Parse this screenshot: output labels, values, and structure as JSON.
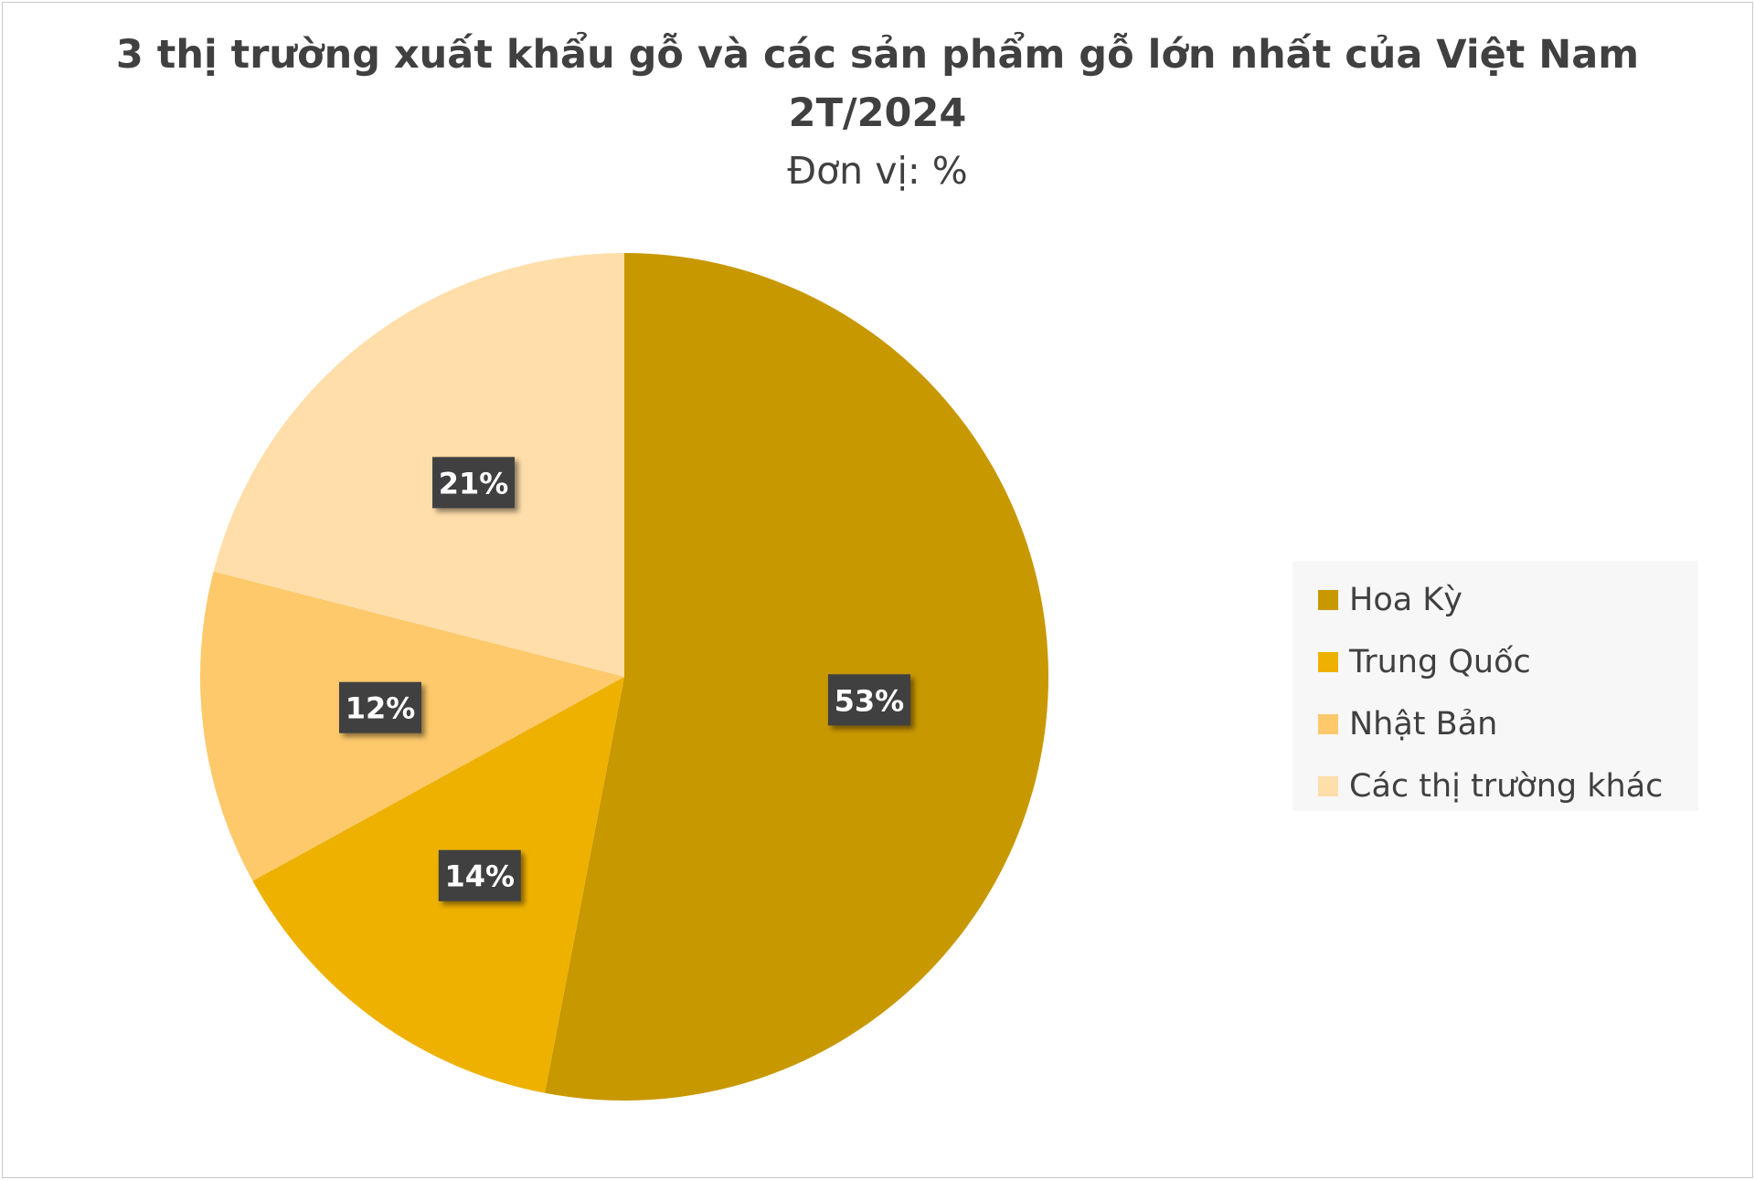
{
  "chart_data": {
    "type": "pie",
    "title": "3 thị trường xuất khẩu gỗ và các sản phẩm gỗ lớn nhất của Việt Nam 2T/2024",
    "title_lines": [
      "3 thị trường xuất khẩu gỗ và các sản phẩm gỗ lớn nhất của Việt Nam",
      "2T/2024"
    ],
    "subtitle": "Đơn vị: %",
    "categories": [
      "Hoa Kỳ",
      "Trung Quốc",
      "Nhật Bản",
      "Các thị trường khác"
    ],
    "values": [
      53,
      14,
      12,
      21
    ],
    "data_labels": [
      "53%",
      "14%",
      "12%",
      "21%"
    ],
    "colors": [
      "#C89800",
      "#EEB100",
      "#FDC96B",
      "#FFDEAA"
    ],
    "legend_position": "right",
    "start_angle_deg": 0,
    "direction": "clockwise"
  }
}
